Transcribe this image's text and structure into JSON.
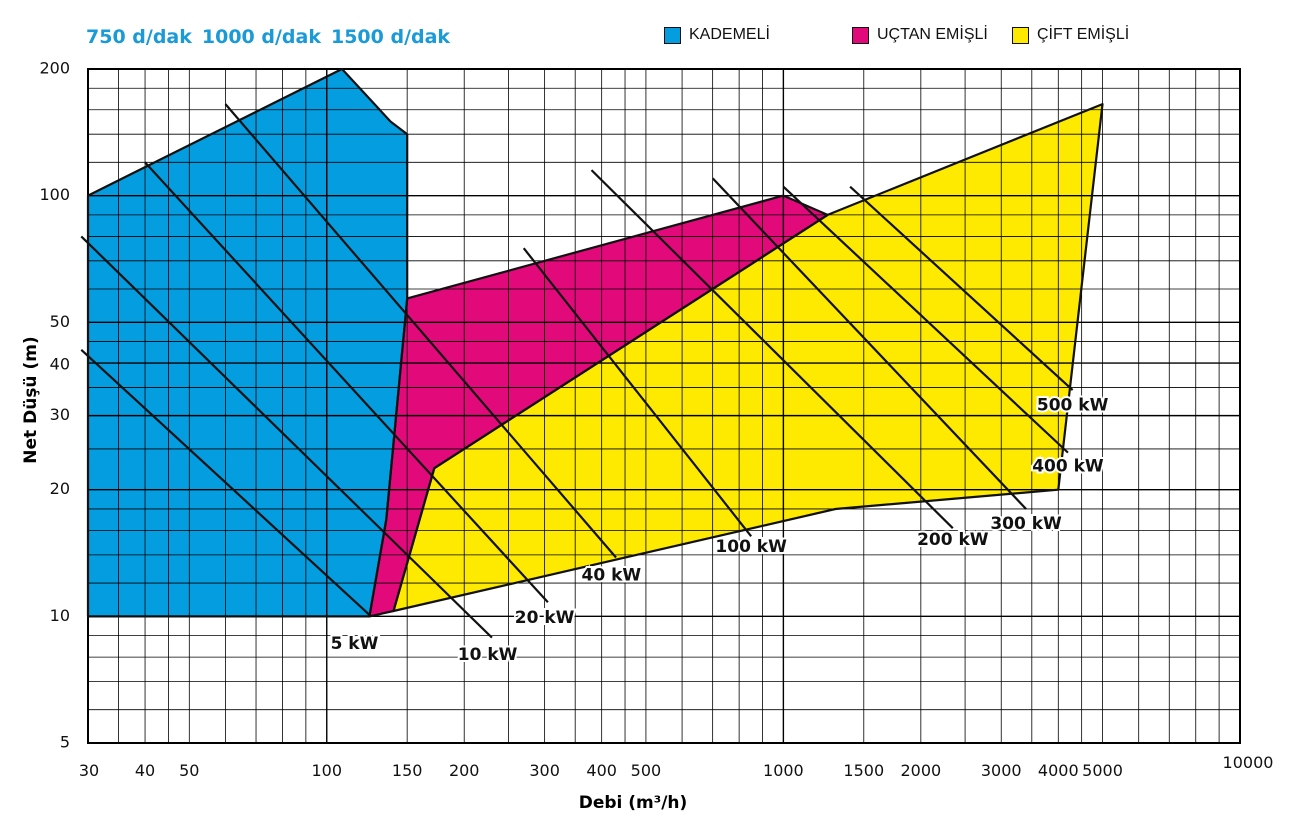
{
  "speed_labels": [
    "750 d/dak",
    "1000 d/dak",
    "1500 d/dak"
  ],
  "colors": {
    "kademeli": "#049de0",
    "uctan": "#e20a7a",
    "cift": "#fdea00",
    "grid": "#000000",
    "speed_text": "#1a9ad6"
  },
  "chart_data": {
    "type": "area",
    "xlabel": "Debi (m³/h)",
    "ylabel": "Net Düşü (m)",
    "x_scale": "log",
    "y_scale": "log",
    "xlim": [
      30,
      10000
    ],
    "ylim": [
      5,
      200
    ],
    "x_ticks": [
      30,
      40,
      50,
      100,
      150,
      200,
      300,
      400,
      500,
      1000,
      1500,
      2000,
      3000,
      4000,
      5000,
      10000
    ],
    "y_ticks": [
      5,
      10,
      20,
      30,
      40,
      50,
      100,
      200
    ],
    "legend": "top",
    "regions": [
      {
        "name": "KADEMELİ",
        "color": "#049de0",
        "points": [
          [
            30,
            10
          ],
          [
            30,
            100
          ],
          [
            108,
            200
          ],
          [
            138,
            150
          ],
          [
            150,
            140
          ],
          [
            150,
            57
          ],
          [
            135,
            17
          ],
          [
            124,
            10
          ]
        ]
      },
      {
        "name": "UÇTAN EMİŞLİ",
        "color": "#e20a7a",
        "points": [
          [
            150,
            57
          ],
          [
            1000,
            100
          ],
          [
            1250,
            90
          ],
          [
            172,
            22.5
          ],
          [
            140,
            10.3
          ],
          [
            124,
            10
          ],
          [
            135,
            17
          ]
        ]
      },
      {
        "name": "ÇİFT EMİŞLİ",
        "color": "#fdea00",
        "points": [
          [
            172,
            22.5
          ],
          [
            1250,
            90
          ],
          [
            5000,
            165
          ],
          [
            4000,
            20
          ],
          [
            1300,
            18
          ],
          [
            140,
            10.3
          ]
        ]
      }
    ],
    "power_lines": [
      {
        "label": "5 kW",
        "from": [
          29,
          43
        ],
        "to": [
          125,
          10
        ],
        "label_at": [
          115,
          8.6
        ]
      },
      {
        "label": "10 kW",
        "from": [
          29,
          80
        ],
        "to": [
          230,
          8.9
        ],
        "label_at": [
          225,
          8.1
        ]
      },
      {
        "label": "20 kW",
        "from": [
          40,
          120
        ],
        "to": [
          305,
          10.8
        ],
        "label_at": [
          300,
          9.9
        ]
      },
      {
        "label": "40 kW",
        "from": [
          60,
          165
        ],
        "to": [
          430,
          13.8
        ],
        "label_at": [
          420,
          12.5
        ]
      },
      {
        "label": "100 kW",
        "from": [
          270,
          75
        ],
        "to": [
          850,
          15.5
        ],
        "label_at": [
          850,
          14.6
        ]
      },
      {
        "label": "200 kW",
        "from": [
          380,
          115
        ],
        "to": [
          2350,
          16.2
        ],
        "label_at": [
          2350,
          15.2
        ]
      },
      {
        "label": "300 kW",
        "from": [
          700,
          110
        ],
        "to": [
          3400,
          18.0
        ],
        "label_at": [
          3400,
          16.6
        ]
      },
      {
        "label": "400 kW",
        "from": [
          1000,
          105
        ],
        "to": [
          4200,
          24.5
        ],
        "label_at": [
          4200,
          22.7
        ]
      },
      {
        "label": "500 kW",
        "from": [
          1400,
          105
        ],
        "to": [
          4300,
          34.5
        ],
        "label_at": [
          4300,
          31.7
        ]
      }
    ]
  }
}
